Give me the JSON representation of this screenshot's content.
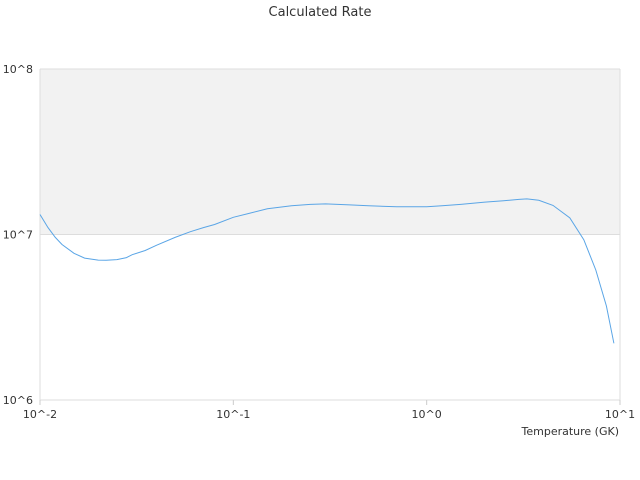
{
  "chart_data": {
    "type": "line",
    "title": "Calculated Rate",
    "xlabel": "Temperature (GK)",
    "ylabel": "",
    "x_scale": "log",
    "y_scale": "log",
    "xlim": [
      0.01,
      10
    ],
    "ylim": [
      1000000,
      100000000
    ],
    "x_tick_labels": [
      "10^-2",
      "10^-1",
      "10^0",
      "10^1"
    ],
    "y_tick_labels": [
      "10^6",
      "10^7",
      "10^8"
    ],
    "grid": true,
    "band_color": "#f2f2f2",
    "line_color": "#5aa5e6",
    "series": [
      {
        "x": [
          0.01,
          0.011,
          0.012,
          0.013,
          0.015,
          0.017,
          0.02,
          0.022,
          0.025,
          0.028,
          0.03,
          0.035,
          0.04,
          0.05,
          0.06,
          0.07,
          0.08,
          0.1,
          0.12,
          0.15,
          0.2,
          0.25,
          0.3,
          0.4,
          0.5,
          0.7,
          1.0,
          1.2,
          1.5,
          2.0,
          2.5,
          3.0,
          3.3,
          3.8,
          4.5,
          5.5,
          6.5,
          7.5,
          8.5,
          9.3
        ],
        "y": [
          13200000,
          11000000,
          9600000,
          8700000,
          7700000,
          7200000,
          7000000,
          6980000,
          7050000,
          7250000,
          7550000,
          8000000,
          8600000,
          9600000,
          10400000,
          11000000,
          11500000,
          12700000,
          13400000,
          14300000,
          14900000,
          15200000,
          15300000,
          15100000,
          14900000,
          14700000,
          14700000,
          14900000,
          15200000,
          15700000,
          16000000,
          16300000,
          16400000,
          16100000,
          15000000,
          12600000,
          9300000,
          6100000,
          3700000,
          2200000
        ]
      }
    ]
  }
}
